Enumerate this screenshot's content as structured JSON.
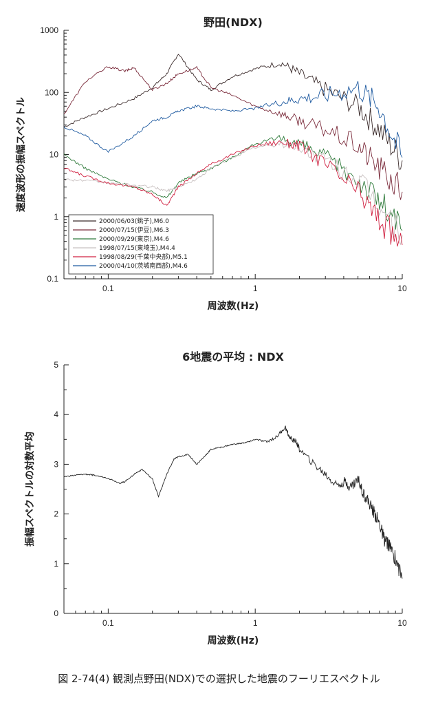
{
  "caption": "図 2-74(4) 観測点野田(NDX)での選択した地震のフーリエスペクトル",
  "chart_data": [
    {
      "type": "line",
      "title": "野田(NDX)",
      "xlabel": "周波数(Hz)",
      "ylabel": "速度波形の振幅スペクトル",
      "xscale": "log",
      "yscale": "log",
      "xlim": [
        0.05,
        10
      ],
      "ylim": [
        0.1,
        1000
      ],
      "x_ticks": [
        "0.1",
        "1",
        "10"
      ],
      "y_ticks": [
        "0.1",
        "1",
        "10",
        "100",
        "1000"
      ],
      "legend_position": "bottom-left",
      "series": [
        {
          "name": "2000/06/03(銚子),M6.0",
          "color": "#3a2a2a",
          "x": [
            0.05,
            0.07,
            0.1,
            0.15,
            0.2,
            0.25,
            0.3,
            0.4,
            0.5,
            0.7,
            1,
            1.5,
            2,
            3,
            5,
            7,
            10
          ],
          "y": [
            28,
            40,
            55,
            80,
            120,
            200,
            420,
            160,
            110,
            180,
            240,
            300,
            200,
            110,
            60,
            25,
            8
          ]
        },
        {
          "name": "2000/07/15(伊豆),M6.3",
          "color": "#7a2a3a",
          "x": [
            0.05,
            0.07,
            0.1,
            0.13,
            0.15,
            0.2,
            0.25,
            0.3,
            0.4,
            0.5,
            0.7,
            1,
            1.5,
            2,
            3,
            5,
            7,
            10
          ],
          "y": [
            45,
            150,
            260,
            220,
            250,
            110,
            140,
            200,
            250,
            120,
            90,
            60,
            45,
            35,
            25,
            14,
            6,
            2.5
          ]
        },
        {
          "name": "2000/09/29(東京),M4.6",
          "color": "#2e7a3a",
          "x": [
            0.05,
            0.07,
            0.1,
            0.15,
            0.2,
            0.25,
            0.3,
            0.4,
            0.5,
            0.7,
            1,
            1.5,
            2,
            3,
            5,
            7,
            10
          ],
          "y": [
            10,
            6,
            4,
            3,
            2.5,
            2,
            3.5,
            5,
            6,
            9,
            15,
            18,
            15,
            9,
            4,
            1.8,
            0.6
          ]
        },
        {
          "name": "1998/07/15(東埼玉),M4.4",
          "color": "#c8c0c0",
          "x": [
            0.05,
            0.07,
            0.1,
            0.15,
            0.2,
            0.25,
            0.3,
            0.4,
            0.5,
            0.7,
            1,
            1.5,
            2,
            3,
            5,
            7,
            10
          ],
          "y": [
            4,
            3.8,
            3.5,
            3.2,
            3,
            2.6,
            3,
            4,
            6,
            9,
            13,
            15,
            13,
            8,
            4,
            1.5,
            0.5
          ]
        },
        {
          "name": "1998/08/29(千葉中央部),M5.1",
          "color": "#d02040",
          "x": [
            0.05,
            0.07,
            0.1,
            0.15,
            0.2,
            0.25,
            0.3,
            0.4,
            0.5,
            0.7,
            1,
            1.5,
            2,
            3,
            5,
            7,
            10
          ],
          "y": [
            6,
            4.5,
            3.5,
            3,
            2.3,
            1.5,
            3,
            5,
            7,
            10,
            14,
            16,
            14,
            7,
            2.5,
            0.9,
            0.35
          ]
        },
        {
          "name": "2000/04/10(茨城南西部),M4.6",
          "color": "#1e5aa0",
          "x": [
            0.05,
            0.07,
            0.1,
            0.15,
            0.2,
            0.25,
            0.3,
            0.4,
            0.5,
            0.7,
            1,
            1.5,
            2,
            3,
            5,
            7,
            10
          ],
          "y": [
            28,
            20,
            11,
            20,
            35,
            40,
            50,
            60,
            55,
            50,
            55,
            70,
            80,
            90,
            120,
            60,
            9
          ]
        }
      ]
    },
    {
      "type": "line",
      "title": "6地震の平均 : NDX",
      "xlabel": "周波数(Hz)",
      "ylabel": "振幅スペクトルの対数平均",
      "xscale": "log",
      "xlim": [
        0.05,
        10
      ],
      "ylim": [
        0,
        5
      ],
      "x_ticks": [
        "0.1",
        "1",
        "10"
      ],
      "y_ticks": [
        "0",
        "1",
        "2",
        "3",
        "4",
        "5"
      ],
      "series": [
        {
          "color": "#222222",
          "x": [
            0.05,
            0.06,
            0.07,
            0.08,
            0.1,
            0.12,
            0.13,
            0.15,
            0.17,
            0.2,
            0.22,
            0.25,
            0.28,
            0.3,
            0.35,
            0.4,
            0.45,
            0.5,
            0.6,
            0.7,
            0.8,
            0.9,
            1,
            1.2,
            1.4,
            1.6,
            1.7,
            1.9,
            2,
            2.5,
            3,
            3.5,
            4,
            4.5,
            5,
            5.5,
            6,
            6.5,
            7,
            7.5,
            8,
            9,
            10
          ],
          "y": [
            2.75,
            2.78,
            2.8,
            2.78,
            2.72,
            2.62,
            2.65,
            2.8,
            2.9,
            2.7,
            2.35,
            2.8,
            3.1,
            3.15,
            3.2,
            3.0,
            3.15,
            3.3,
            3.35,
            3.4,
            3.42,
            3.45,
            3.5,
            3.45,
            3.55,
            3.75,
            3.55,
            3.45,
            3.3,
            3.0,
            2.8,
            2.6,
            2.65,
            2.55,
            2.7,
            2.4,
            2.2,
            2.0,
            1.8,
            1.5,
            1.4,
            1.1,
            0.7
          ]
        }
      ]
    }
  ]
}
